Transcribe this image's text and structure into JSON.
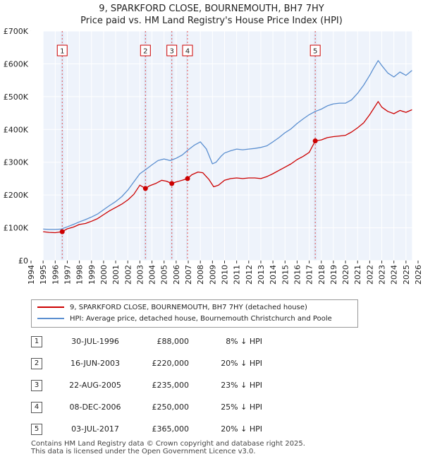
{
  "header": {
    "title_line1": "9, SPARKFORD CLOSE, BOURNEMOUTH, BH7 7HY",
    "title_line2": "Price paid vs. HM Land Registry's House Price Index (HPI)"
  },
  "legend": {
    "property_label": "9, SPARKFORD CLOSE, BOURNEMOUTH, BH7 7HY (detached house)",
    "hpi_label": "HPI: Average price, detached house, Bournemouth Christchurch and Poole"
  },
  "sales": [
    {
      "num": "1",
      "date": "30-JUL-1996",
      "price": "£88,000",
      "hpi": "8% ↓ HPI"
    },
    {
      "num": "2",
      "date": "16-JUN-2003",
      "price": "£220,000",
      "hpi": "20% ↓ HPI"
    },
    {
      "num": "3",
      "date": "22-AUG-2005",
      "price": "£235,000",
      "hpi": "23% ↓ HPI"
    },
    {
      "num": "4",
      "date": "08-DEC-2006",
      "price": "£250,000",
      "hpi": "25% ↓ HPI"
    },
    {
      "num": "5",
      "date": "03-JUL-2017",
      "price": "£365,000",
      "hpi": "20% ↓ HPI"
    }
  ],
  "footer": {
    "line1": "Contains HM Land Registry data © Crown copyright and database right 2025.",
    "line2": "This data is licensed under the Open Government Licence v3.0."
  },
  "colors": {
    "property": "#cc0000",
    "hpi": "#5b8fd0",
    "background": "#eef3fb",
    "sale_band": "#e0e8f6",
    "grid": "#ffffff",
    "marker_line": "#e05050"
  },
  "chart_data": {
    "type": "line",
    "title": "Price paid vs. HM Land Registry's House Price Index (HPI)",
    "xlabel": "",
    "ylabel": "",
    "xlim": [
      1994,
      2026
    ],
    "ylim": [
      0,
      700000
    ],
    "x_ticks": [
      1994,
      1995,
      1996,
      1997,
      1998,
      1999,
      2000,
      2001,
      2002,
      2003,
      2004,
      2005,
      2006,
      2007,
      2008,
      2009,
      2010,
      2011,
      2012,
      2013,
      2014,
      2015,
      2016,
      2017,
      2018,
      2019,
      2020,
      2021,
      2022,
      2023,
      2024,
      2025,
      2026
    ],
    "y_ticks": [
      0,
      100000,
      200000,
      300000,
      400000,
      500000,
      600000,
      700000
    ],
    "y_tick_labels": [
      "£0",
      "£100K",
      "£200K",
      "£300K",
      "£400K",
      "£500K",
      "£600K",
      "£700K"
    ],
    "data_start_year": 1995,
    "data_end_year": 2025.5,
    "series": [
      {
        "name": "9, SPARKFORD CLOSE, BOURNEMOUTH, BH7 7HY (detached house)",
        "x": [
          1995,
          1995.5,
          1996,
          1996.58,
          1997,
          1997.5,
          1998,
          1998.5,
          1999,
          1999.5,
          2000,
          2000.5,
          2001,
          2001.5,
          2002,
          2002.5,
          2003,
          2003.46,
          2003.8,
          2004.3,
          2004.8,
          2005.2,
          2005.64,
          2006,
          2006.5,
          2006.94,
          2007.3,
          2007.8,
          2008.2,
          2008.7,
          2009.1,
          2009.5,
          2010,
          2010.5,
          2011,
          2011.5,
          2012,
          2012.5,
          2013,
          2013.5,
          2014,
          2014.5,
          2015,
          2015.5,
          2016,
          2016.5,
          2017,
          2017.5,
          2018,
          2018.5,
          2019,
          2019.5,
          2020,
          2020.5,
          2021,
          2021.5,
          2022,
          2022.3,
          2022.7,
          2023,
          2023.5,
          2024,
          2024.5,
          2025,
          2025.5
        ],
        "values": [
          88000,
          86000,
          85000,
          88000,
          97000,
          102000,
          110000,
          113000,
          120000,
          128000,
          140000,
          152000,
          162000,
          172000,
          185000,
          202000,
          230000,
          220000,
          228000,
          235000,
          245000,
          242000,
          235000,
          240000,
          245000,
          250000,
          262000,
          270000,
          268000,
          248000,
          225000,
          230000,
          245000,
          250000,
          252000,
          250000,
          252000,
          252000,
          250000,
          256000,
          265000,
          275000,
          285000,
          295000,
          308000,
          318000,
          330000,
          365000,
          368000,
          375000,
          378000,
          380000,
          382000,
          392000,
          405000,
          420000,
          445000,
          462000,
          485000,
          468000,
          455000,
          448000,
          458000,
          452000,
          460000
        ]
      },
      {
        "name": "HPI: Average price, detached house, Bournemouth Christchurch and Poole",
        "x": [
          1995,
          1995.5,
          1996,
          1996.5,
          1997,
          1997.5,
          1998,
          1998.5,
          1999,
          1999.5,
          2000,
          2000.5,
          2001,
          2001.5,
          2002,
          2002.5,
          2003,
          2003.5,
          2004,
          2004.5,
          2005,
          2005.5,
          2006,
          2006.5,
          2007,
          2007.5,
          2008,
          2008.5,
          2009,
          2009.3,
          2009.7,
          2010,
          2010.5,
          2011,
          2011.5,
          2012,
          2012.5,
          2013,
          2013.5,
          2014,
          2014.5,
          2015,
          2015.5,
          2016,
          2016.5,
          2017,
          2017.5,
          2018,
          2018.5,
          2019,
          2019.5,
          2020,
          2020.5,
          2021,
          2021.5,
          2022,
          2022.3,
          2022.7,
          2023,
          2023.5,
          2024,
          2024.5,
          2025,
          2025.5
        ],
        "values": [
          96000,
          95000,
          95000,
          96000,
          103000,
          110000,
          118000,
          125000,
          133000,
          142000,
          155000,
          168000,
          180000,
          195000,
          215000,
          240000,
          265000,
          278000,
          292000,
          305000,
          310000,
          305000,
          312000,
          322000,
          338000,
          352000,
          362000,
          340000,
          295000,
          300000,
          318000,
          328000,
          335000,
          340000,
          338000,
          340000,
          342000,
          345000,
          350000,
          362000,
          375000,
          390000,
          402000,
          418000,
          432000,
          445000,
          455000,
          462000,
          472000,
          478000,
          480000,
          480000,
          490000,
          510000,
          535000,
          565000,
          585000,
          610000,
          595000,
          572000,
          560000,
          575000,
          565000,
          580000
        ]
      }
    ],
    "sale_markers": [
      {
        "label": "1",
        "x": 1996.58,
        "value": 88000
      },
      {
        "label": "2",
        "x": 2003.46,
        "value": 220000
      },
      {
        "label": "3",
        "x": 2005.64,
        "value": 235000
      },
      {
        "label": "4",
        "x": 2006.94,
        "value": 250000
      },
      {
        "label": "5",
        "x": 2017.5,
        "value": 365000
      }
    ],
    "legend_position": "below"
  }
}
